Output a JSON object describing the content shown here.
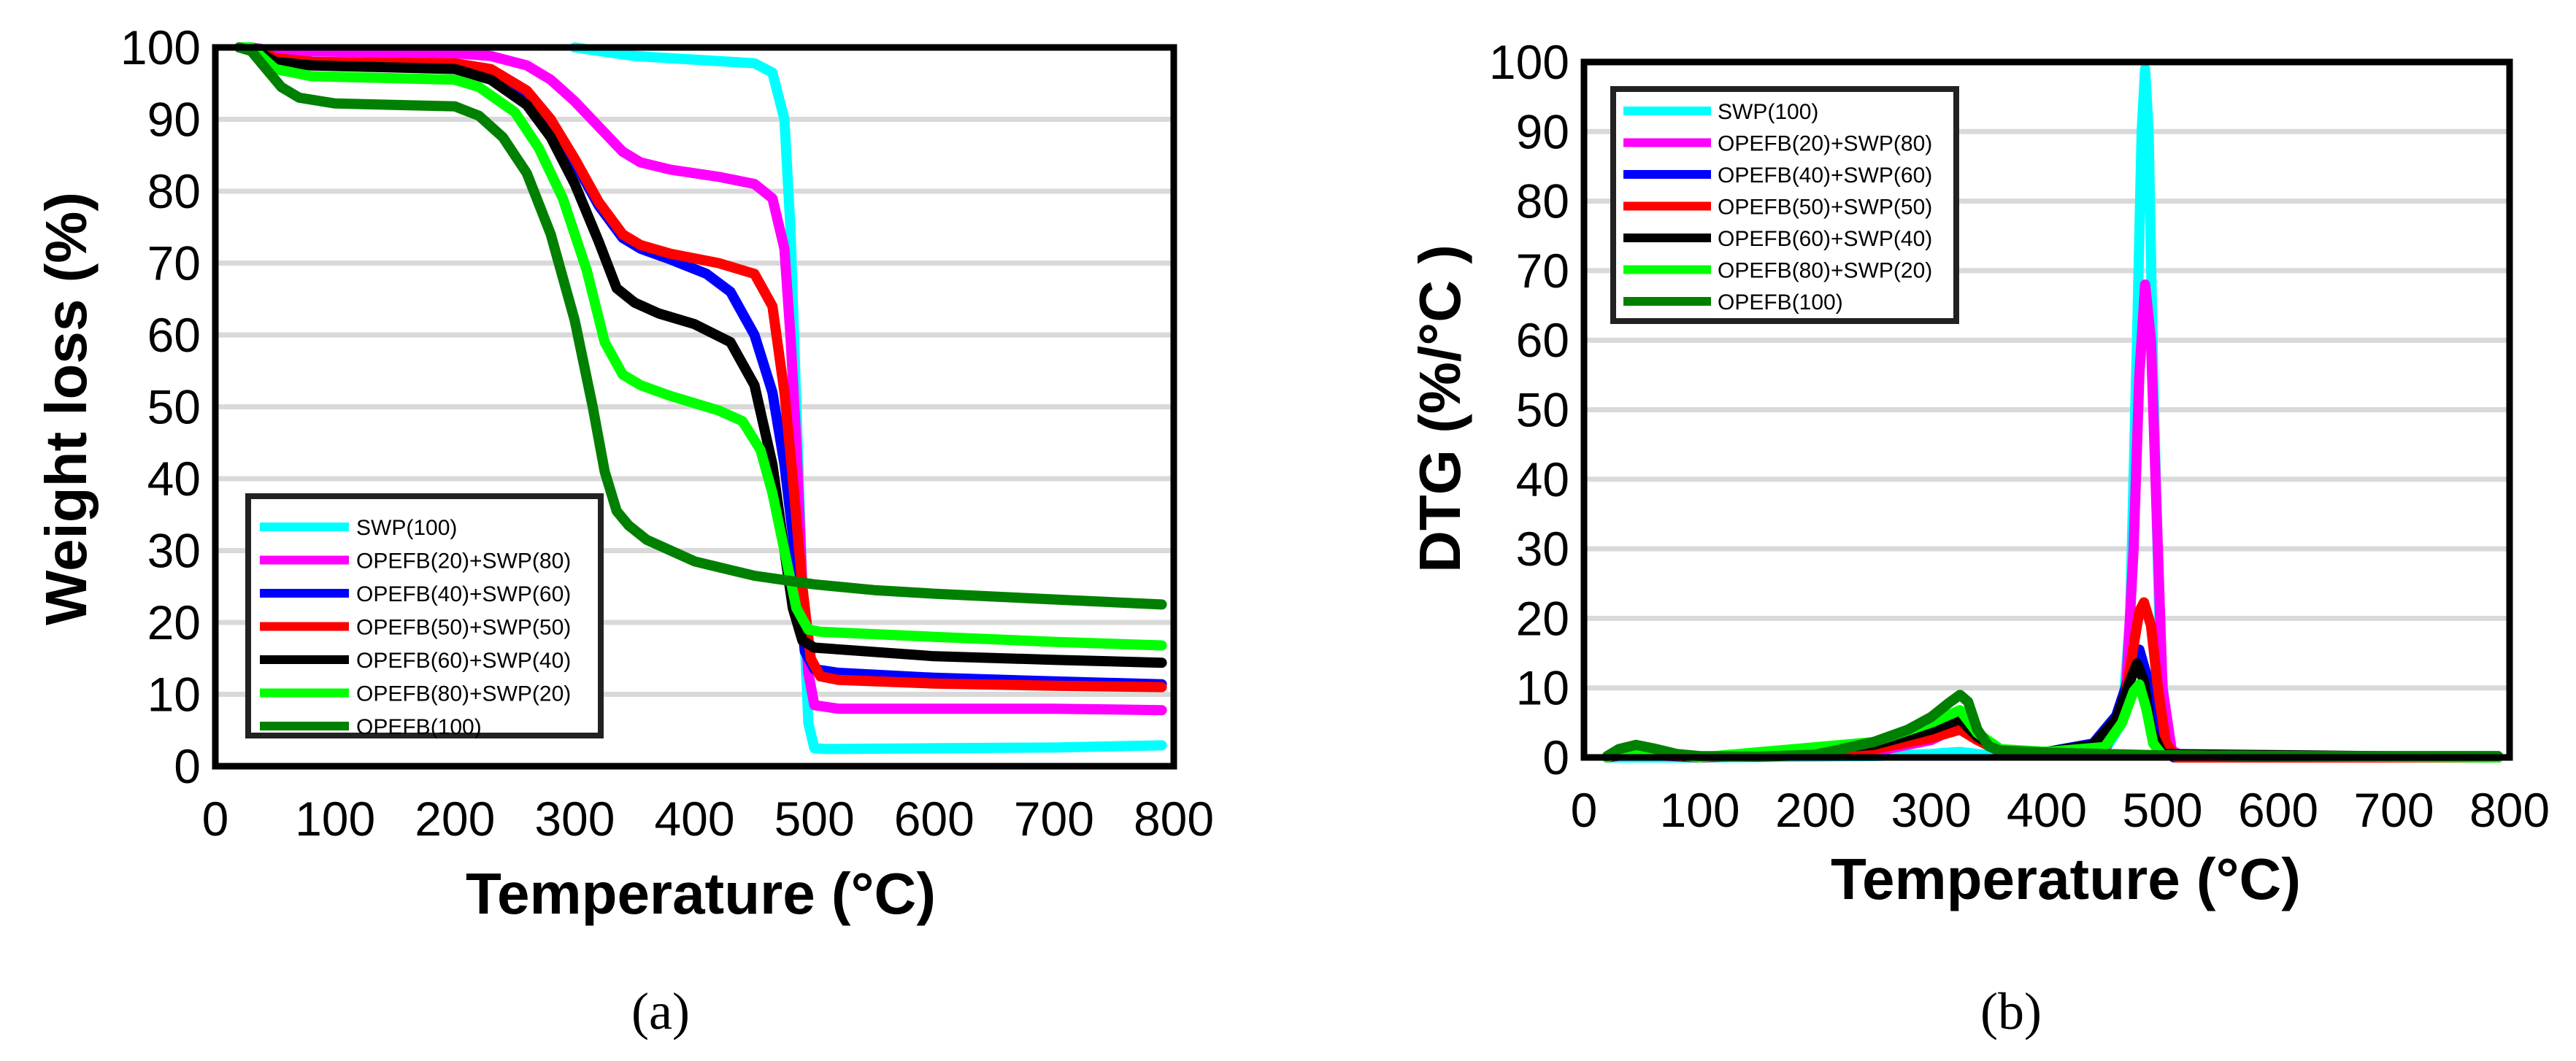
{
  "figure": {
    "panels": [
      {
        "id": "a",
        "label": "(a)"
      },
      {
        "id": "b",
        "label": "(b)"
      }
    ]
  },
  "legend": [
    {
      "name": "SWP(100)",
      "color": "#00FFFF"
    },
    {
      "name": "OPEFB(20)+SWP(80)",
      "color": "#FF00FF"
    },
    {
      "name": "OPEFB(40)+SWP(60)",
      "color": "#0000FF"
    },
    {
      "name": "OPEFB(50)+SWP(50)",
      "color": "#FF0000"
    },
    {
      "name": "OPEFB(60)+SWP(40)",
      "color": "#000000"
    },
    {
      "name": "OPEFB(80)+SWP(20)",
      "color": "#00FF00"
    },
    {
      "name": "OPEFB(100)",
      "color": "#008000"
    }
  ],
  "chart_data": [
    {
      "type": "line",
      "panel": "(a)",
      "title": "",
      "xlabel": "Temperature (°C)",
      "ylabel": "Weight loss (%)",
      "xlim": [
        0,
        800
      ],
      "ylim": [
        0,
        100
      ],
      "xticks": [
        0,
        100,
        200,
        300,
        400,
        500,
        600,
        700,
        800
      ],
      "yticks": [
        0,
        10,
        20,
        30,
        40,
        50,
        60,
        70,
        80,
        90,
        100
      ],
      "grid": "horizontal",
      "legend_position": "lower left",
      "series": [
        {
          "name": "SWP(100)",
          "color": "#00FFFF",
          "x": [
            300,
            350,
            400,
            450,
            465,
            475,
            480,
            485,
            490,
            495,
            500,
            510,
            600,
            700,
            790
          ],
          "y": [
            100,
            98.8,
            98.3,
            97.8,
            96.5,
            90,
            75,
            50,
            25,
            6,
            2.5,
            2.4,
            2.5,
            2.6,
            2.9
          ]
        },
        {
          "name": "OPEFB(20)+SWP(80)",
          "color": "#FF00FF",
          "x": [
            20,
            30,
            50,
            100,
            200,
            230,
            260,
            280,
            300,
            320,
            340,
            355,
            380,
            420,
            450,
            465,
            475,
            480,
            485,
            490,
            495,
            500,
            520,
            600,
            700,
            790
          ],
          "y": [
            100,
            100,
            99.5,
            99.4,
            99.2,
            98.8,
            97.5,
            95.5,
            92.5,
            89,
            85.5,
            84,
            83,
            82,
            81,
            79,
            72,
            60,
            45,
            25,
            13,
            8.5,
            8,
            8,
            8,
            7.8
          ]
        },
        {
          "name": "OPEFB(40)+SWP(60)",
          "color": "#0000FF",
          "x": [
            20,
            30,
            50,
            80,
            200,
            230,
            260,
            280,
            300,
            320,
            340,
            355,
            380,
            410,
            430,
            450,
            465,
            475,
            485,
            492,
            500,
            520,
            600,
            700,
            790
          ],
          "y": [
            100,
            100,
            98.5,
            98,
            97.5,
            96.5,
            93,
            89,
            84,
            78,
            73.5,
            72,
            70.5,
            68.5,
            66,
            60,
            52,
            42,
            28,
            16,
            13.5,
            13,
            12.3,
            11.8,
            11.4
          ]
        },
        {
          "name": "OPEFB(50)+SWP(50)",
          "color": "#FF0000",
          "x": [
            20,
            30,
            50,
            80,
            200,
            230,
            260,
            280,
            300,
            320,
            340,
            355,
            380,
            420,
            450,
            465,
            475,
            482,
            490,
            497,
            505,
            520,
            600,
            700,
            790
          ],
          "y": [
            100,
            100,
            98.5,
            98,
            97.8,
            97,
            94,
            90,
            84.5,
            78.5,
            74,
            72.5,
            71.3,
            70,
            68.5,
            64,
            52,
            40,
            25,
            15,
            12.5,
            12,
            11.5,
            11.2,
            11
          ]
        },
        {
          "name": "OPEFB(60)+SWP(40)",
          "color": "#000000",
          "x": [
            20,
            30,
            50,
            80,
            200,
            230,
            260,
            280,
            300,
            320,
            335,
            350,
            370,
            400,
            430,
            450,
            465,
            475,
            482,
            490,
            500,
            600,
            700,
            790
          ],
          "y": [
            100,
            100,
            98,
            97.5,
            97,
            95.5,
            92,
            87.5,
            81,
            73,
            66.5,
            64.5,
            63,
            61.5,
            59,
            53,
            42,
            30,
            22,
            17.5,
            16.5,
            15.3,
            14.8,
            14.4
          ]
        },
        {
          "name": "OPEFB(80)+SWP(20)",
          "color": "#00FF00",
          "x": [
            20,
            30,
            50,
            80,
            200,
            220,
            250,
            270,
            290,
            310,
            325,
            340,
            355,
            380,
            420,
            440,
            455,
            465,
            475,
            485,
            495,
            505,
            600,
            700,
            790
          ],
          "y": [
            100,
            100,
            97,
            96,
            95.5,
            94.5,
            91,
            86,
            79,
            69,
            59,
            54.5,
            53,
            51.5,
            49.5,
            48,
            44,
            38,
            30,
            22,
            19,
            18.7,
            18,
            17.3,
            16.8
          ]
        },
        {
          "name": "OPEFB(100)",
          "color": "#008000",
          "x": [
            20,
            30,
            40,
            55,
            70,
            100,
            200,
            220,
            240,
            260,
            280,
            300,
            315,
            325,
            335,
            345,
            360,
            400,
            450,
            500,
            550,
            600,
            700,
            790
          ],
          "y": [
            100,
            99.5,
            97.5,
            94.5,
            93,
            92.2,
            91.8,
            90.5,
            87.5,
            82.5,
            74,
            62,
            50,
            41,
            35.5,
            33.5,
            31.5,
            28.5,
            26.5,
            25.3,
            24.5,
            24,
            23.2,
            22.5
          ]
        }
      ]
    },
    {
      "type": "line",
      "panel": "(b)",
      "title": "",
      "xlabel": "Temperature (°C)",
      "ylabel": "DTG (%/°C )",
      "xlim": [
        0,
        800
      ],
      "ylim": [
        0,
        100
      ],
      "xticks": [
        0,
        100,
        200,
        300,
        400,
        500,
        600,
        700,
        800
      ],
      "yticks": [
        0,
        10,
        20,
        30,
        40,
        50,
        60,
        70,
        80,
        90,
        100
      ],
      "grid": "horizontal",
      "legend_position": "upper left",
      "series": [
        {
          "name": "SWP(100)",
          "color": "#00FFFF",
          "x": [
            20,
            100,
            250,
            300,
            325,
            350,
            400,
            450,
            465,
            472,
            478,
            482,
            485,
            488,
            492,
            498,
            505,
            520,
            790
          ],
          "y": [
            0,
            0,
            0.2,
            0.5,
            0.8,
            0.3,
            0.5,
            1,
            5,
            20,
            60,
            90,
            99,
            90,
            55,
            15,
            1,
            0,
            0
          ]
        },
        {
          "name": "OPEFB(20)+SWP(80)",
          "color": "#FF00FF",
          "x": [
            20,
            40,
            100,
            250,
            300,
            325,
            340,
            360,
            400,
            450,
            468,
            475,
            480,
            485,
            490,
            495,
            500,
            508,
            520,
            790
          ],
          "y": [
            0,
            0.5,
            0,
            0.8,
            2.5,
            4.5,
            3,
            1,
            0.5,
            1,
            8,
            30,
            55,
            68,
            60,
            35,
            10,
            1,
            0,
            0
          ]
        },
        {
          "name": "OPEFB(40)+SWP(60)",
          "color": "#0000FF",
          "x": [
            20,
            40,
            100,
            250,
            300,
            325,
            340,
            360,
            400,
            440,
            460,
            472,
            480,
            486,
            492,
            500,
            510,
            790
          ],
          "y": [
            0,
            0.6,
            0,
            1.5,
            3.5,
            5,
            3,
            1,
            0.8,
            2,
            6,
            12,
            15.5,
            12,
            5,
            1,
            0,
            0
          ]
        },
        {
          "name": "OPEFB(50)+SWP(50)",
          "color": "#FF0000",
          "x": [
            20,
            40,
            100,
            250,
            300,
            325,
            340,
            360,
            400,
            450,
            465,
            473,
            480,
            484,
            490,
            496,
            503,
            512,
            790
          ],
          "y": [
            0,
            0.7,
            0,
            1.2,
            2.8,
            4,
            2.5,
            0.8,
            0.6,
            1.5,
            6,
            14,
            21,
            22.3,
            19,
            10,
            2,
            0,
            0
          ]
        },
        {
          "name": "OPEFB(60)+SWP(40)",
          "color": "#000000",
          "x": [
            20,
            40,
            100,
            250,
            300,
            325,
            340,
            360,
            400,
            440,
            460,
            472,
            478,
            484,
            490,
            500,
            790
          ],
          "y": [
            0,
            1,
            0,
            1.8,
            4,
            5.5,
            3,
            1,
            0.8,
            1.8,
            5.5,
            11,
            13.5,
            11,
            4,
            0.5,
            0
          ]
        },
        {
          "name": "OPEFB(80)+SWP(20)",
          "color": "#00FF00",
          "x": [
            20,
            40,
            100,
            250,
            300,
            325,
            340,
            360,
            400,
            450,
            465,
            475,
            480,
            486,
            492,
            500,
            790
          ],
          "y": [
            0,
            1.2,
            0,
            2.2,
            5,
            6.8,
            3.5,
            1.2,
            0.8,
            1.5,
            5,
            9.5,
            10.5,
            7,
            2,
            0.3,
            0
          ]
        },
        {
          "name": "OPEFB(100)",
          "color": "#008000",
          "x": [
            20,
            30,
            45,
            60,
            80,
            100,
            150,
            200,
            250,
            280,
            300,
            315,
            325,
            332,
            340,
            350,
            360,
            400,
            450,
            500,
            600,
            700,
            790
          ],
          "y": [
            0.2,
            1.2,
            1.8,
            1.3,
            0.5,
            0.2,
            0.1,
            0.4,
            2.2,
            4,
            5.8,
            7.8,
            9,
            8,
            4,
            1.6,
            1,
            0.7,
            0.5,
            0.3,
            0.2,
            0.2,
            0.2
          ]
        }
      ]
    }
  ]
}
